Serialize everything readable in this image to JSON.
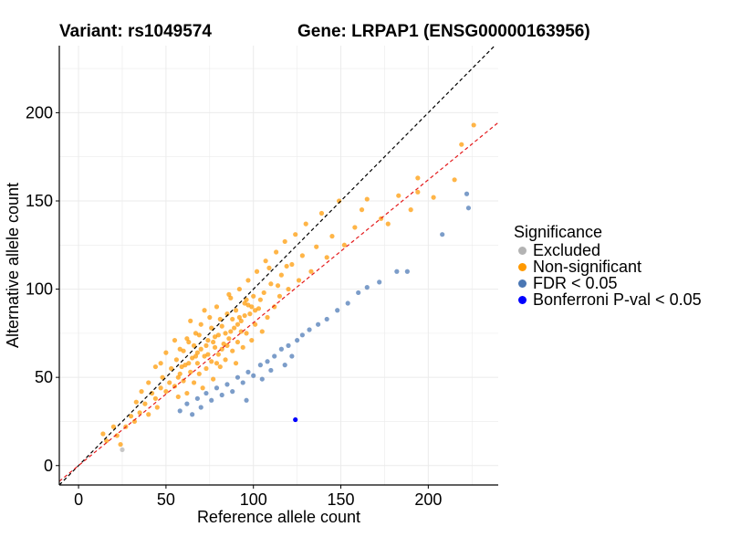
{
  "header": {
    "variant_label": "Variant: rs1049574",
    "gene_label": "Gene: LRPAP1 (ENSG00000163956)"
  },
  "chart_data": {
    "type": "scatter",
    "xlabel": "Reference allele count",
    "ylabel": "Alternative allele count",
    "xlim": [
      -11,
      240
    ],
    "ylim": [
      -11,
      238
    ],
    "xticks": [
      0,
      50,
      100,
      150,
      200
    ],
    "yticks": [
      0,
      50,
      100,
      150,
      200
    ],
    "grid": true,
    "legend_position": "right",
    "reference_lines": [
      {
        "name": "identity",
        "slope": 1.0,
        "intercept": 0,
        "color": "#000000",
        "dash": true
      },
      {
        "name": "fit",
        "slope": 0.81,
        "intercept": 0,
        "color": "#e41a1c",
        "dash": true
      }
    ],
    "legend": {
      "title": "Significance",
      "entries": [
        {
          "label": "Excluded",
          "color": "#b3b3b3"
        },
        {
          "label": "Non-significant",
          "color": "#ff9900"
        },
        {
          "label": "FDR < 0.05",
          "color": "#4a77b4"
        },
        {
          "label": "Bonferroni P-val < 0.05",
          "color": "#0000ff"
        }
      ]
    },
    "series": [
      {
        "name": "Excluded",
        "color": "#b3b3b3",
        "points": [
          [
            25,
            9
          ]
        ]
      },
      {
        "name": "Non-significant",
        "color": "#ff9900",
        "points": [
          [
            14,
            18
          ],
          [
            16,
            14
          ],
          [
            20,
            22
          ],
          [
            22,
            17
          ],
          [
            24,
            12
          ],
          [
            27,
            22
          ],
          [
            30,
            28
          ],
          [
            32,
            25
          ],
          [
            33,
            36
          ],
          [
            35,
            30
          ],
          [
            38,
            35
          ],
          [
            40,
            29
          ],
          [
            42,
            41
          ],
          [
            44,
            38
          ],
          [
            45,
            33
          ],
          [
            47,
            44
          ],
          [
            48,
            50
          ],
          [
            50,
            42
          ],
          [
            52,
            47
          ],
          [
            53,
            55
          ],
          [
            55,
            45
          ],
          [
            56,
            60
          ],
          [
            57,
            39
          ],
          [
            58,
            52
          ],
          [
            60,
            65
          ],
          [
            60,
            48
          ],
          [
            61,
            57
          ],
          [
            62,
            41
          ],
          [
            63,
            70
          ],
          [
            64,
            53
          ],
          [
            65,
            61
          ],
          [
            66,
            47
          ],
          [
            67,
            75
          ],
          [
            68,
            58
          ],
          [
            69,
            52
          ],
          [
            70,
            66
          ],
          [
            70,
            80
          ],
          [
            71,
            44
          ],
          [
            72,
            62
          ],
          [
            73,
            55
          ],
          [
            74,
            71
          ],
          [
            75,
            84
          ],
          [
            76,
            59
          ],
          [
            77,
            49
          ],
          [
            78,
            67
          ],
          [
            79,
            90
          ],
          [
            80,
            63
          ],
          [
            80,
            74
          ],
          [
            81,
            56
          ],
          [
            82,
            79
          ],
          [
            83,
            69
          ],
          [
            84,
            60
          ],
          [
            85,
            86
          ],
          [
            86,
            72
          ],
          [
            87,
            95
          ],
          [
            88,
            65
          ],
          [
            89,
            78
          ],
          [
            90,
            58
          ],
          [
            90,
            88
          ],
          [
            91,
            70
          ],
          [
            92,
            100
          ],
          [
            93,
            82
          ],
          [
            94,
            67
          ],
          [
            95,
            92
          ],
          [
            96,
            75
          ],
          [
            97,
            105
          ],
          [
            98,
            86
          ],
          [
            99,
            71
          ],
          [
            100,
            96
          ],
          [
            101,
            80
          ],
          [
            102,
            110
          ],
          [
            103,
            89
          ],
          [
            105,
            76
          ],
          [
            106,
            98
          ],
          [
            107,
            116
          ],
          [
            108,
            84
          ],
          [
            110,
            103
          ],
          [
            112,
            90
          ],
          [
            113,
            121
          ],
          [
            115,
            96
          ],
          [
            116,
            108
          ],
          [
            118,
            127
          ],
          [
            120,
            100
          ],
          [
            122,
            114
          ],
          [
            124,
            131
          ],
          [
            126,
            105
          ],
          [
            128,
            119
          ],
          [
            130,
            137
          ],
          [
            133,
            110
          ],
          [
            136,
            124
          ],
          [
            139,
            143
          ],
          [
            142,
            118
          ],
          [
            145,
            130
          ],
          [
            149,
            150
          ],
          [
            152,
            125
          ],
          [
            158,
            135
          ],
          [
            162,
            145
          ],
          [
            165,
            151
          ],
          [
            173,
            140
          ],
          [
            177,
            137
          ],
          [
            183,
            153
          ],
          [
            190,
            145
          ],
          [
            194,
            163
          ],
          [
            203,
            152
          ],
          [
            215,
            162
          ],
          [
            219,
            182
          ],
          [
            226,
            193
          ],
          [
            194,
            155
          ],
          [
            58,
            66
          ],
          [
            62,
            72
          ],
          [
            66,
            68
          ],
          [
            74,
            63
          ],
          [
            79,
            58
          ],
          [
            84,
            75
          ],
          [
            88,
            83
          ],
          [
            93,
            76
          ],
          [
            97,
            91
          ],
          [
            101,
            88
          ],
          [
            76,
            78
          ],
          [
            81,
            83
          ],
          [
            69,
            74
          ],
          [
            72,
            88
          ],
          [
            86,
            97
          ],
          [
            64,
            82
          ],
          [
            55,
            71
          ],
          [
            47,
            58
          ],
          [
            50,
            64
          ],
          [
            40,
            47
          ],
          [
            36,
            42
          ],
          [
            44,
            56
          ],
          [
            59,
            56
          ],
          [
            67,
            62
          ],
          [
            77,
            70
          ],
          [
            85,
            68
          ],
          [
            92,
            84
          ],
          [
            96,
            94
          ],
          [
            104,
            94
          ],
          [
            109,
            112
          ],
          [
            114,
            102
          ],
          [
            119,
            113
          ],
          [
            57,
            50
          ],
          [
            63,
            58
          ],
          [
            68,
            64
          ],
          [
            73,
            68
          ],
          [
            78,
            73
          ],
          [
            82,
            66
          ],
          [
            87,
            76
          ],
          [
            91,
            80
          ],
          [
            95,
            85
          ],
          [
            99,
            90
          ]
        ]
      },
      {
        "name": "FDR < 0.05",
        "color": "#4a77b4",
        "points": [
          [
            58,
            31
          ],
          [
            62,
            35
          ],
          [
            65,
            29
          ],
          [
            68,
            38
          ],
          [
            70,
            33
          ],
          [
            73,
            41
          ],
          [
            76,
            37
          ],
          [
            79,
            44
          ],
          [
            82,
            40
          ],
          [
            85,
            46
          ],
          [
            88,
            42
          ],
          [
            91,
            50
          ],
          [
            94,
            47
          ],
          [
            97,
            53
          ],
          [
            100,
            51
          ],
          [
            104,
            57
          ],
          [
            108,
            59
          ],
          [
            112,
            62
          ],
          [
            116,
            66
          ],
          [
            120,
            68
          ],
          [
            125,
            71
          ],
          [
            128,
            74
          ],
          [
            132,
            77
          ],
          [
            137,
            80
          ],
          [
            142,
            83
          ],
          [
            148,
            88
          ],
          [
            154,
            92
          ],
          [
            160,
            98
          ],
          [
            165,
            101
          ],
          [
            172,
            104
          ],
          [
            182,
            110
          ],
          [
            188,
            110
          ],
          [
            208,
            131
          ],
          [
            222,
            154
          ],
          [
            223,
            146
          ],
          [
            96,
            37
          ],
          [
            105,
            49
          ],
          [
            110,
            54
          ],
          [
            118,
            57
          ],
          [
            122,
            62
          ]
        ]
      },
      {
        "name": "Bonferroni P-val < 0.05",
        "color": "#0000ff",
        "points": [
          [
            124,
            26
          ]
        ]
      }
    ]
  }
}
